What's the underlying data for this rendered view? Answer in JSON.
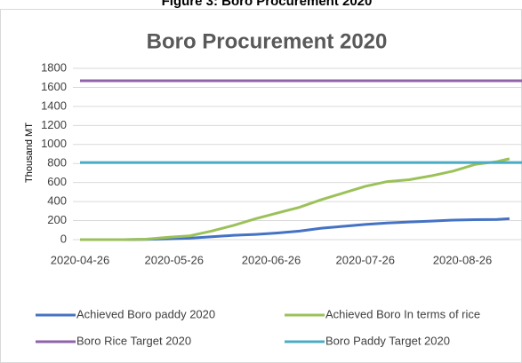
{
  "caption": "Figure 3: Boro Procurement 2020",
  "chart_data": {
    "type": "line",
    "title": "Boro Procurement 2020",
    "y_label": "Thousand MT",
    "x": [
      "2020-04-26",
      "2020-05-03",
      "2020-05-10",
      "2020-05-17",
      "2020-05-24",
      "2020-05-31",
      "2020-06-07",
      "2020-06-14",
      "2020-06-21",
      "2020-06-28",
      "2020-07-05",
      "2020-07-12",
      "2020-07-19",
      "2020-07-26",
      "2020-08-02",
      "2020-08-09",
      "2020-08-16",
      "2020-08-23",
      "2020-08-30",
      "2020-09-06",
      "2020-09-10"
    ],
    "series": [
      {
        "name": "Achieved Boro paddy  2020",
        "color": "#4472c4",
        "values": [
          0,
          0,
          0,
          2,
          8,
          15,
          30,
          45,
          55,
          70,
          90,
          120,
          140,
          160,
          175,
          185,
          195,
          205,
          210,
          212,
          220
        ]
      },
      {
        "name": "Achieved Boro In terms of rice",
        "color": "#9bc159",
        "values": [
          0,
          0,
          0,
          5,
          25,
          40,
          90,
          150,
          220,
          280,
          340,
          420,
          490,
          560,
          610,
          630,
          670,
          720,
          790,
          820,
          850
        ]
      },
      {
        "name": "Boro Rice Target 2020",
        "color": "#8e63a8",
        "value": 1670
      },
      {
        "name": "Boro Paddy Target 2020",
        "color": "#4bacc6",
        "value": 810
      }
    ],
    "xlim": [
      "2020-04-26",
      "2020-09-14"
    ],
    "xticks": [
      "2020-04-26",
      "2020-05-26",
      "2020-06-26",
      "2020-07-26",
      "2020-08-26"
    ],
    "ylim": [
      0,
      1800
    ],
    "yticks": [
      0,
      200,
      400,
      600,
      800,
      1000,
      1200,
      1400,
      1600,
      1800
    ],
    "grid": true
  }
}
